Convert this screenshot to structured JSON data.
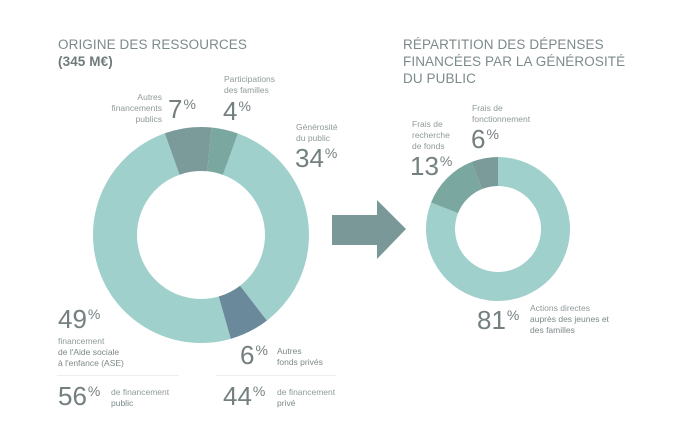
{
  "colors": {
    "light_teal": "#9fd0cc",
    "gray_teal": "#7b9a9a",
    "green_teal": "#7aa79f",
    "slate_blue": "#6a8a9b",
    "arrow": "#7b9898",
    "text": "#747f80"
  },
  "chart_data": [
    {
      "type": "pie",
      "variant": "donut",
      "title": "ORIGINE DES RESSOURCES",
      "subtitle": "(345 M€)",
      "unit": "%",
      "slices": [
        {
          "label": "Générosité du public",
          "label_lines": [
            "Générosité",
            "du public"
          ],
          "value": 34,
          "color_key": "light_teal"
        },
        {
          "label": "Autres fonds privés",
          "label_lines": [
            "Autres",
            "fonds privés"
          ],
          "value": 6,
          "color_key": "slate_blue"
        },
        {
          "label": "financement de l'Aide sociale à l'enfance (ASE)",
          "label_lines": [
            "financement",
            "de l'Aide sociale",
            "à l'enfance (ASE)"
          ],
          "value": 49,
          "color_key": "light_teal"
        },
        {
          "label": "Autres financements publics",
          "label_lines": [
            "Autres",
            "financements",
            "publics"
          ],
          "value": 7,
          "color_key": "gray_teal"
        },
        {
          "label": "Participations des familles",
          "label_lines": [
            "Participations",
            "des familles"
          ],
          "value": 4,
          "color_key": "green_teal"
        }
      ],
      "totals": [
        {
          "value": 56,
          "label_lines": [
            "de financement",
            "public"
          ]
        },
        {
          "value": 44,
          "label_lines": [
            "de financement",
            "privé"
          ]
        }
      ]
    },
    {
      "type": "pie",
      "variant": "donut",
      "title": "RÉPARTITION DES DÉPENSES FINANCÉES PAR LA GÉNÉROSITÉ DU PUBLIC",
      "title_lines": [
        "RÉPARTITION DES DÉPENSES",
        "FINANCÉES PAR LA GÉNÉROSITÉ",
        "DU PUBLIC"
      ],
      "unit": "%",
      "slices": [
        {
          "label": "Actions directes auprès des jeunes et des familles",
          "label_lines": [
            "Actions directes",
            "auprès des jeunes et",
            "des familles"
          ],
          "value": 81,
          "color_key": "light_teal"
        },
        {
          "label": "Frais de recherche de fonds",
          "label_lines": [
            "Frais de",
            "recherche",
            "de fonds"
          ],
          "value": 13,
          "color_key": "green_teal"
        },
        {
          "label": "Frais de fonctionnement",
          "label_lines": [
            "Frais de",
            "fonctionnement"
          ],
          "value": 6,
          "color_key": "gray_teal"
        }
      ]
    }
  ],
  "percent_sign": "%"
}
